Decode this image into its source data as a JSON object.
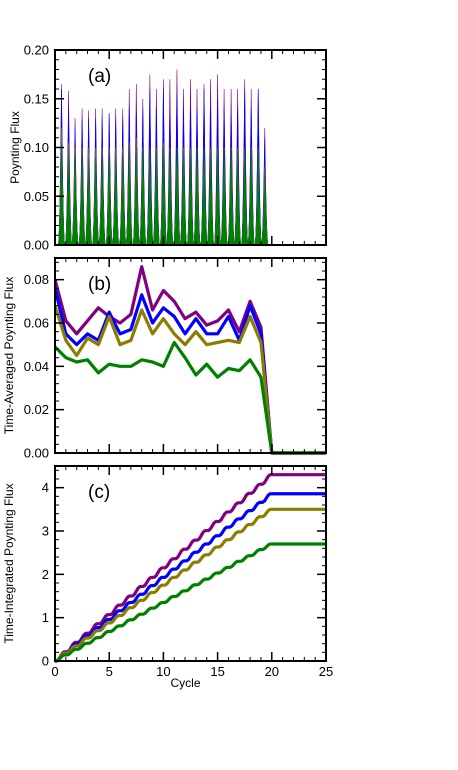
{
  "chart_data": [
    {
      "type": "area",
      "panel_label": "(a)",
      "xlabel": "",
      "ylabel": "Poynting Flux",
      "xlim": [
        0,
        25
      ],
      "ylim": [
        0,
        0.2
      ],
      "yticks": [
        0.0,
        0.05,
        0.1,
        0.15,
        0.2
      ],
      "ytick_labels": [
        "0.00",
        "0.05",
        "0.10",
        "0.15",
        "0.20"
      ],
      "xticks": [
        0,
        5,
        10,
        15,
        20,
        25
      ],
      "grid": false,
      "series": [
        {
          "color": "#800080",
          "x": [
            0.6,
            1.25,
            1.85,
            2.5,
            3.1,
            3.75,
            4.35,
            5.0,
            5.6,
            6.25,
            6.85,
            7.5,
            8.1,
            8.75,
            9.35,
            10.0,
            10.6,
            11.25,
            11.85,
            12.5,
            13.1,
            13.75,
            14.35,
            15.0,
            15.6,
            16.25,
            16.85,
            17.5,
            18.1,
            18.75,
            19.35
          ],
          "values": [
            0.165,
            0.158,
            0.13,
            0.14,
            0.138,
            0.14,
            0.14,
            0.135,
            0.14,
            0.14,
            0.16,
            0.165,
            0.15,
            0.175,
            0.16,
            0.17,
            0.17,
            0.18,
            0.16,
            0.17,
            0.16,
            0.165,
            0.17,
            0.175,
            0.16,
            0.16,
            0.16,
            0.17,
            0.16,
            0.16,
            0.12
          ]
        },
        {
          "color": "#0000ff",
          "x": [
            0.6,
            1.25,
            1.85,
            2.5,
            3.1,
            3.75,
            4.35,
            5.0,
            5.6,
            6.25,
            6.85,
            7.5,
            8.1,
            8.75,
            9.35,
            10.0,
            10.6,
            11.25,
            11.85,
            12.5,
            13.1,
            13.75,
            14.35,
            15.0,
            15.6,
            16.25,
            16.85,
            17.5,
            18.1,
            18.75,
            19.35
          ],
          "values": [
            0.16,
            0.14,
            0.12,
            0.13,
            0.13,
            0.13,
            0.13,
            0.135,
            0.13,
            0.13,
            0.14,
            0.135,
            0.14,
            0.16,
            0.14,
            0.16,
            0.13,
            0.155,
            0.14,
            0.14,
            0.14,
            0.16,
            0.14,
            0.15,
            0.14,
            0.13,
            0.14,
            0.16,
            0.14,
            0.16,
            0.11
          ]
        },
        {
          "color": "#8b7d00",
          "x": [
            0.6,
            1.25,
            1.85,
            2.5,
            3.1,
            3.75,
            4.35,
            5.0,
            5.6,
            6.25,
            6.85,
            7.5,
            8.1,
            8.75,
            9.35,
            10.0,
            10.6,
            11.25,
            11.85,
            12.5,
            13.1,
            13.75,
            14.35,
            15.0,
            15.6,
            16.25,
            16.85,
            17.5,
            18.1,
            18.75,
            19.35
          ],
          "values": [
            0.12,
            0.105,
            0.1,
            0.1,
            0.1,
            0.1,
            0.1,
            0.1,
            0.1,
            0.1,
            0.105,
            0.11,
            0.1,
            0.1,
            0.1,
            0.105,
            0.1,
            0.1,
            0.1,
            0.1,
            0.1,
            0.1,
            0.1,
            0.1,
            0.1,
            0.1,
            0.1,
            0.1,
            0.1,
            0.1,
            0.08
          ]
        },
        {
          "color": "#008000",
          "x": [
            0.6,
            1.25,
            1.85,
            2.5,
            3.1,
            3.75,
            4.35,
            5.0,
            5.6,
            6.25,
            6.85,
            7.5,
            8.1,
            8.75,
            9.35,
            10.0,
            10.6,
            11.25,
            11.85,
            12.5,
            13.1,
            13.75,
            14.35,
            15.0,
            15.6,
            16.25,
            16.85,
            17.5,
            18.1,
            18.75,
            19.35
          ],
          "values": [
            0.105,
            0.098,
            0.09,
            0.092,
            0.088,
            0.09,
            0.092,
            0.09,
            0.088,
            0.09,
            0.095,
            0.1,
            0.098,
            0.1,
            0.098,
            0.1,
            0.098,
            0.1,
            0.097,
            0.098,
            0.097,
            0.1,
            0.098,
            0.1,
            0.097,
            0.098,
            0.097,
            0.1,
            0.097,
            0.098,
            0.07
          ]
        }
      ]
    },
    {
      "type": "line",
      "panel_label": "(b)",
      "xlabel": "",
      "ylabel": "Time-Averaged Poynting Flux",
      "xlim": [
        0,
        25
      ],
      "ylim": [
        0,
        0.09
      ],
      "yticks": [
        0.0,
        0.02,
        0.04,
        0.06,
        0.08
      ],
      "ytick_labels": [
        "0.00",
        "0.02",
        "0.04",
        "0.06",
        "0.08"
      ],
      "xticks": [
        0,
        5,
        10,
        15,
        20,
        25
      ],
      "grid": false,
      "x": [
        0,
        1,
        2,
        3,
        4,
        5,
        6,
        7,
        8,
        9,
        10,
        11,
        12,
        13,
        14,
        15,
        16,
        17,
        18,
        19,
        20,
        21,
        22,
        23,
        24,
        25
      ],
      "series": [
        {
          "color": "#800080",
          "values": [
            0.08,
            0.061,
            0.055,
            0.061,
            0.067,
            0.063,
            0.06,
            0.064,
            0.086,
            0.066,
            0.075,
            0.07,
            0.062,
            0.065,
            0.059,
            0.061,
            0.066,
            0.056,
            0.07,
            0.058,
            0.0,
            0.0,
            0.0,
            0.0,
            0.0,
            0.0
          ]
        },
        {
          "color": "#0000ff",
          "values": [
            0.076,
            0.055,
            0.05,
            0.055,
            0.052,
            0.065,
            0.055,
            0.057,
            0.073,
            0.06,
            0.067,
            0.063,
            0.055,
            0.062,
            0.055,
            0.055,
            0.063,
            0.052,
            0.068,
            0.055,
            0.0,
            0.0,
            0.0,
            0.0,
            0.0,
            0.0
          ]
        },
        {
          "color": "#8b7d00",
          "values": [
            0.068,
            0.052,
            0.045,
            0.053,
            0.05,
            0.063,
            0.05,
            0.052,
            0.066,
            0.055,
            0.062,
            0.055,
            0.05,
            0.056,
            0.05,
            0.051,
            0.052,
            0.051,
            0.063,
            0.051,
            0.0,
            0.0,
            0.0,
            0.0,
            0.0,
            0.0
          ]
        },
        {
          "color": "#008000",
          "values": [
            0.049,
            0.044,
            0.042,
            0.043,
            0.037,
            0.041,
            0.04,
            0.04,
            0.043,
            0.042,
            0.04,
            0.051,
            0.044,
            0.036,
            0.041,
            0.035,
            0.039,
            0.038,
            0.043,
            0.035,
            0.0,
            0.0,
            0.0,
            0.0,
            0.0,
            0.0
          ]
        }
      ]
    },
    {
      "type": "line",
      "panel_label": "(c)",
      "xlabel": "Cycle",
      "ylabel": "Time-Integrated Poynting Flux",
      "xlim": [
        0,
        25
      ],
      "ylim": [
        0,
        4.5
      ],
      "yticks": [
        0,
        1,
        2,
        3,
        4
      ],
      "ytick_labels": [
        "0",
        "1",
        "2",
        "3",
        "4"
      ],
      "xticks": [
        0,
        5,
        10,
        15,
        20,
        25
      ],
      "xtick_labels": [
        "0",
        "5",
        "10",
        "15",
        "20",
        "25"
      ],
      "grid": false,
      "x": [
        0,
        1,
        2,
        3,
        4,
        5,
        6,
        7,
        8,
        9,
        10,
        11,
        12,
        13,
        14,
        15,
        16,
        17,
        18,
        19,
        20,
        21,
        22,
        23,
        24,
        25
      ],
      "series": [
        {
          "color": "#800080",
          "values": [
            0,
            0.21,
            0.43,
            0.64,
            0.86,
            1.07,
            1.29,
            1.5,
            1.72,
            1.93,
            2.15,
            2.36,
            2.58,
            2.79,
            3.01,
            3.22,
            3.44,
            3.65,
            3.87,
            4.08,
            4.3,
            4.3,
            4.3,
            4.3,
            4.3,
            4.3
          ]
        },
        {
          "color": "#0000ff",
          "values": [
            0,
            0.19,
            0.39,
            0.58,
            0.77,
            0.96,
            1.16,
            1.35,
            1.54,
            1.74,
            1.93,
            2.12,
            2.31,
            2.51,
            2.7,
            2.89,
            3.09,
            3.28,
            3.47,
            3.66,
            3.86,
            3.86,
            3.86,
            3.86,
            3.86,
            3.86
          ]
        },
        {
          "color": "#8b7d00",
          "values": [
            0,
            0.18,
            0.35,
            0.53,
            0.7,
            0.88,
            1.05,
            1.23,
            1.4,
            1.58,
            1.75,
            1.93,
            2.1,
            2.28,
            2.45,
            2.63,
            2.8,
            2.98,
            3.15,
            3.33,
            3.5,
            3.5,
            3.5,
            3.5,
            3.5,
            3.5
          ]
        },
        {
          "color": "#008000",
          "values": [
            0,
            0.14,
            0.27,
            0.41,
            0.54,
            0.68,
            0.81,
            0.95,
            1.08,
            1.22,
            1.35,
            1.49,
            1.62,
            1.76,
            1.89,
            2.03,
            2.16,
            2.3,
            2.43,
            2.57,
            2.7,
            2.7,
            2.7,
            2.7,
            2.7,
            2.7
          ]
        }
      ]
    }
  ]
}
